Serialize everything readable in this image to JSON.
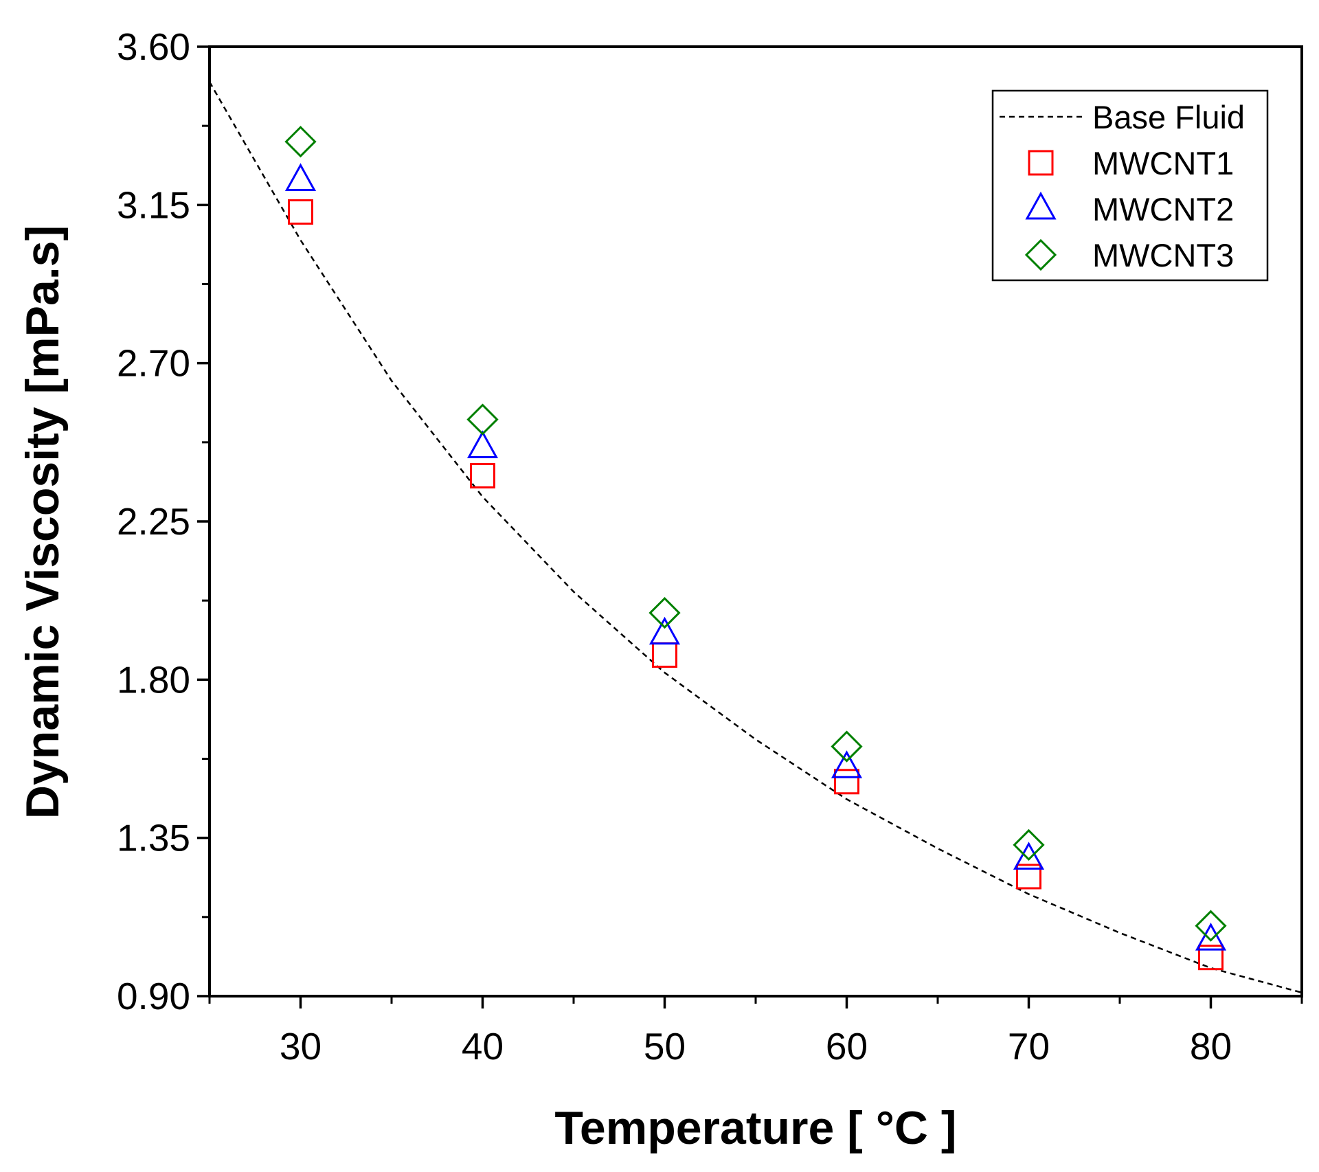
{
  "chart_data": {
    "type": "scatter",
    "xlabel": "Temperature [ °C ]",
    "ylabel": "Dynamic Viscosity [mPa.s]",
    "xlim": [
      25,
      85
    ],
    "ylim": [
      0.9,
      3.6
    ],
    "x_ticks": [
      30,
      40,
      50,
      60,
      70,
      80
    ],
    "x_tick_labels": [
      "30",
      "40",
      "50",
      "60",
      "70",
      "80"
    ],
    "x_minor_ticks": [
      25,
      35,
      45,
      55,
      65,
      75,
      85
    ],
    "y_ticks": [
      0.9,
      1.35,
      1.8,
      2.25,
      2.7,
      3.15,
      3.6
    ],
    "y_tick_labels": [
      "0.90",
      "1.35",
      "1.80",
      "2.25",
      "2.70",
      "3.15",
      "3.60"
    ],
    "y_minor_ticks": [
      1.125,
      1.575,
      2.025,
      2.475,
      2.925,
      3.375
    ],
    "grid": false,
    "legend_position": "top-right",
    "series": [
      {
        "name": "Base Fluid",
        "kind": "line",
        "style": "dashed",
        "color": "#000000",
        "x": [
          25,
          30,
          35,
          40,
          45,
          50,
          55,
          60,
          65,
          70,
          75,
          80,
          85
        ],
        "y": [
          3.5,
          3.05,
          2.65,
          2.32,
          2.05,
          1.82,
          1.63,
          1.46,
          1.32,
          1.19,
          1.08,
          0.98,
          0.91
        ]
      },
      {
        "name": "MWCNT1",
        "kind": "scatter",
        "marker": "square",
        "color": "#ff0000",
        "x": [
          30,
          40,
          50,
          60,
          70,
          80
        ],
        "y": [
          3.13,
          2.38,
          1.87,
          1.51,
          1.24,
          1.01
        ]
      },
      {
        "name": "MWCNT2",
        "kind": "scatter",
        "marker": "triangle",
        "color": "#0000ff",
        "x": [
          30,
          40,
          50,
          60,
          70,
          80
        ],
        "y": [
          3.22,
          2.46,
          1.93,
          1.55,
          1.29,
          1.06
        ]
      },
      {
        "name": "MWCNT3",
        "kind": "scatter",
        "marker": "diamond",
        "color": "#008000",
        "x": [
          30,
          40,
          50,
          60,
          70,
          80
        ],
        "y": [
          3.33,
          2.54,
          1.99,
          1.61,
          1.33,
          1.1
        ]
      }
    ]
  }
}
